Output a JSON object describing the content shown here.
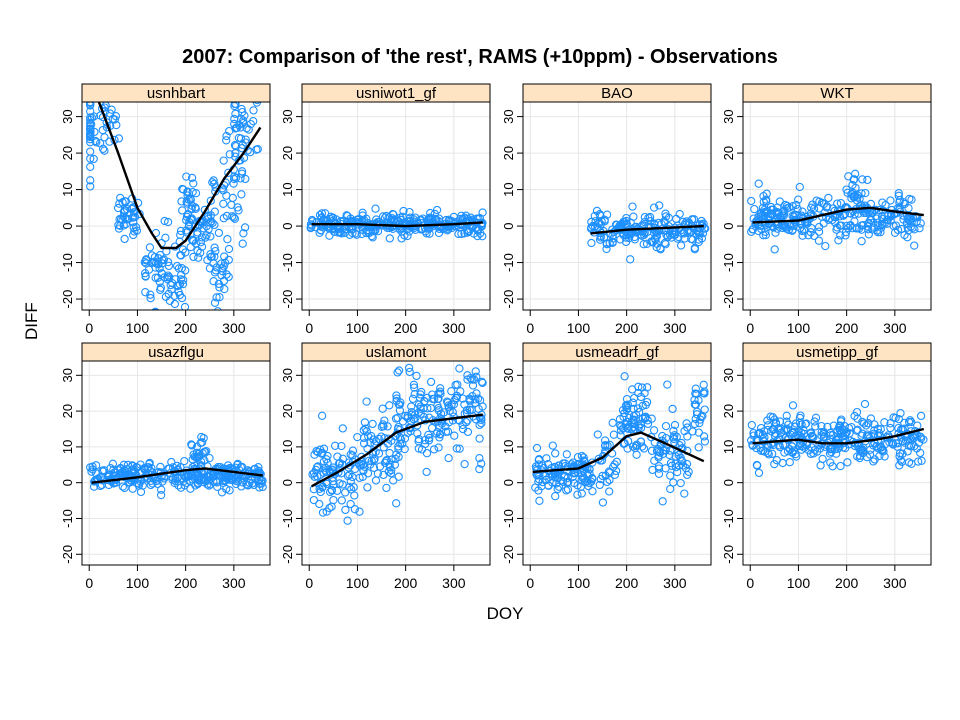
{
  "title": "2007: Comparison of 'the rest', RAMS (+10ppm) - Observations",
  "xlabel": "DOY",
  "ylabel": "DIFF",
  "colors": {
    "points": "#1e90ff",
    "curve": "#000000",
    "strip": "#ffe4c4",
    "grid": "#e6e6e6"
  },
  "chart_data": [
    {
      "type": "scatter",
      "panel": "usnhbart",
      "xlim": [
        -15,
        375
      ],
      "ylim": [
        -23,
        34
      ],
      "xticks": [
        0,
        100,
        200,
        300
      ],
      "yticks": [
        -20,
        -10,
        0,
        10,
        20,
        30
      ],
      "smooth": [
        [
          20,
          34
        ],
        [
          60,
          20
        ],
        [
          100,
          5
        ],
        [
          130,
          -2
        ],
        [
          150,
          -6
        ],
        [
          180,
          -6
        ],
        [
          200,
          -4
        ],
        [
          240,
          4
        ],
        [
          280,
          13
        ],
        [
          320,
          20
        ],
        [
          355,
          27
        ]
      ],
      "clusters": [
        [
          15,
          28,
          50,
          8,
          60
        ],
        [
          80,
          3,
          25,
          4,
          40
        ],
        [
          140,
          -12,
          25,
          8,
          50
        ],
        [
          180,
          -14,
          20,
          6,
          30
        ],
        [
          200,
          5,
          15,
          8,
          35
        ],
        [
          240,
          2,
          25,
          10,
          50
        ],
        [
          270,
          -12,
          20,
          7,
          30
        ],
        [
          300,
          10,
          25,
          12,
          40
        ],
        [
          325,
          28,
          25,
          8,
          40
        ]
      ]
    },
    {
      "type": "scatter",
      "panel": "usniwot1_gf",
      "xlim": [
        -15,
        375
      ],
      "ylim": [
        -23,
        34
      ],
      "xticks": [
        0,
        100,
        200,
        300
      ],
      "yticks": [
        -20,
        -10,
        0,
        10,
        20,
        30
      ],
      "smooth": [
        [
          5,
          0.5
        ],
        [
          100,
          0.5
        ],
        [
          200,
          0
        ],
        [
          300,
          0.5
        ],
        [
          360,
          1
        ]
      ],
      "clusters": [
        [
          180,
          0.5,
          180,
          2.2,
          320
        ]
      ]
    },
    {
      "type": "scatter",
      "panel": "BAO",
      "xlim": [
        -15,
        375
      ],
      "ylim": [
        -23,
        34
      ],
      "xticks": [
        0,
        100,
        200,
        300
      ],
      "yticks": [
        -20,
        -10,
        0,
        10,
        20,
        30
      ],
      "smooth": [
        [
          125,
          -2
        ],
        [
          200,
          -1
        ],
        [
          280,
          -0.5
        ],
        [
          360,
          0
        ]
      ],
      "clusters": [
        [
          245,
          -1,
          120,
          3,
          200
        ]
      ]
    },
    {
      "type": "scatter",
      "panel": "WKT",
      "xlim": [
        -15,
        375
      ],
      "ylim": [
        -23,
        34
      ],
      "xticks": [
        0,
        100,
        200,
        300
      ],
      "yticks": [
        -20,
        -10,
        0,
        10,
        20,
        30
      ],
      "smooth": [
        [
          5,
          1
        ],
        [
          100,
          1.5
        ],
        [
          150,
          3
        ],
        [
          200,
          4.5
        ],
        [
          250,
          5
        ],
        [
          300,
          4
        ],
        [
          360,
          3
        ]
      ],
      "clusters": [
        [
          180,
          2,
          180,
          4,
          300
        ],
        [
          220,
          9,
          25,
          5,
          25
        ]
      ]
    },
    {
      "type": "scatter",
      "panel": "usazflgu",
      "xlim": [
        -15,
        375
      ],
      "ylim": [
        -23,
        34
      ],
      "xticks": [
        0,
        100,
        200,
        300
      ],
      "yticks": [
        -20,
        -10,
        0,
        10,
        20,
        30
      ],
      "smooth": [
        [
          5,
          0
        ],
        [
          100,
          1.5
        ],
        [
          150,
          2.5
        ],
        [
          200,
          3.5
        ],
        [
          240,
          4
        ],
        [
          300,
          3
        ],
        [
          360,
          2
        ]
      ],
      "clusters": [
        [
          180,
          2,
          180,
          2.5,
          320
        ],
        [
          230,
          8,
          20,
          3,
          25
        ]
      ]
    },
    {
      "type": "scatter",
      "panel": "uslamont",
      "xlim": [
        -15,
        375
      ],
      "ylim": [
        -23,
        34
      ],
      "xticks": [
        0,
        100,
        200,
        300
      ],
      "yticks": [
        -20,
        -10,
        0,
        10,
        20,
        30
      ],
      "smooth": [
        [
          5,
          -1
        ],
        [
          60,
          3
        ],
        [
          120,
          8
        ],
        [
          180,
          14
        ],
        [
          240,
          17
        ],
        [
          300,
          18
        ],
        [
          360,
          19
        ]
      ],
      "clusters": [
        [
          60,
          3,
          55,
          7,
          100
        ],
        [
          150,
          10,
          40,
          7,
          70
        ],
        [
          240,
          18,
          60,
          8,
          120
        ],
        [
          330,
          20,
          30,
          9,
          60
        ]
      ]
    },
    {
      "type": "scatter",
      "panel": "usmeadrf_gf",
      "xlim": [
        -15,
        375
      ],
      "ylim": [
        -23,
        34
      ],
      "xticks": [
        0,
        100,
        200,
        300
      ],
      "yticks": [
        -20,
        -10,
        0,
        10,
        20,
        30
      ],
      "smooth": [
        [
          5,
          3
        ],
        [
          100,
          4
        ],
        [
          150,
          7
        ],
        [
          200,
          13
        ],
        [
          230,
          14
        ],
        [
          280,
          11
        ],
        [
          360,
          6
        ]
      ],
      "clusters": [
        [
          70,
          3,
          60,
          4,
          120
        ],
        [
          160,
          5,
          20,
          7,
          30
        ],
        [
          215,
          18,
          30,
          8,
          70
        ],
        [
          290,
          9,
          40,
          7,
          70
        ],
        [
          350,
          18,
          15,
          8,
          25
        ]
      ]
    },
    {
      "type": "scatter",
      "panel": "usmetipp_gf",
      "xlim": [
        -15,
        375
      ],
      "ylim": [
        -23,
        34
      ],
      "xticks": [
        0,
        100,
        200,
        300
      ],
      "yticks": [
        -20,
        -10,
        0,
        10,
        20,
        30
      ],
      "smooth": [
        [
          5,
          11
        ],
        [
          50,
          11.5
        ],
        [
          100,
          12
        ],
        [
          150,
          11
        ],
        [
          200,
          11
        ],
        [
          260,
          12
        ],
        [
          300,
          13
        ],
        [
          360,
          15
        ]
      ],
      "clusters": [
        [
          180,
          12,
          180,
          5,
          330
        ]
      ]
    }
  ]
}
